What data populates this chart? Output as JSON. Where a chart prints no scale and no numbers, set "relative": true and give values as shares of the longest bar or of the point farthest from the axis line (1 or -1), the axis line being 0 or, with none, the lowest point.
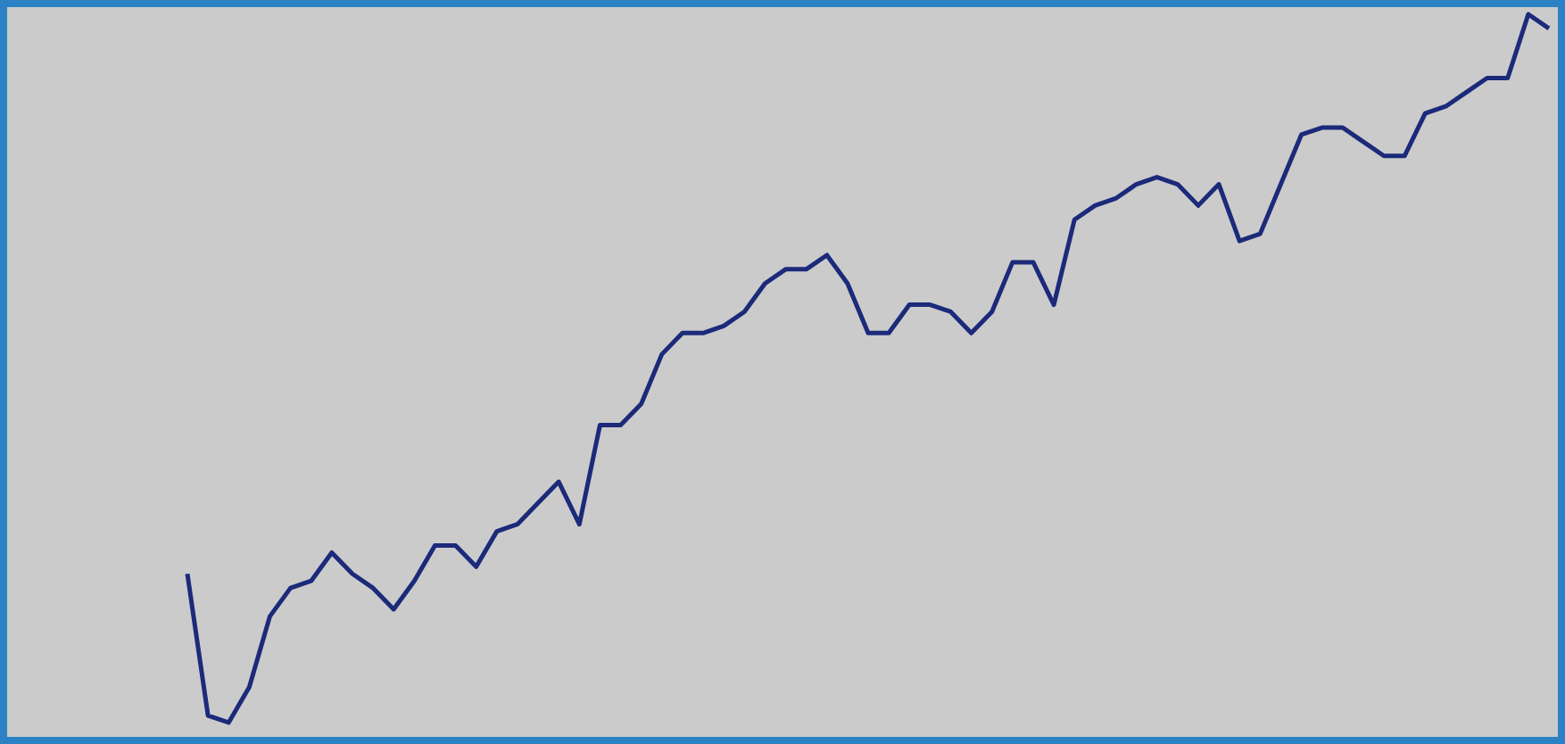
{
  "chart_data": {
    "type": "line",
    "relative": true,
    "categories": [
      null,
      null,
      null,
      null,
      null,
      null,
      null,
      null,
      null,
      null,
      null,
      null,
      null,
      null,
      null,
      null,
      null,
      null,
      null,
      null,
      null,
      null,
      null,
      null,
      null,
      null,
      null,
      null,
      null,
      null,
      null,
      null,
      null,
      null,
      null,
      null,
      null,
      null,
      null,
      null,
      null,
      null,
      null,
      null,
      null,
      null,
      null,
      null,
      null,
      null,
      null,
      null,
      null,
      null,
      null,
      null,
      null,
      null,
      null,
      null,
      null,
      null,
      null,
      null,
      null,
      null,
      null
    ],
    "series": [
      {
        "color": "#1c2a7a",
        "values": [
          0.21,
          0.01,
          0,
          0.05,
          0.15,
          0.19,
          0.2,
          0.24,
          0.21,
          0.19,
          0.16,
          0.2,
          0.25,
          0.25,
          0.22,
          0.27,
          0.28,
          0.31,
          0.34,
          0.28,
          0.42,
          0.42,
          0.45,
          0.52,
          0.55,
          0.55,
          0.56,
          0.58,
          0.62,
          0.64,
          0.64,
          0.66,
          0.62,
          0.55,
          0.55,
          0.59,
          0.59,
          0.58,
          0.55,
          0.58,
          0.65,
          0.65,
          0.59,
          0.71,
          0.73,
          0.74,
          0.76,
          0.77,
          0.76,
          0.73,
          0.76,
          0.68,
          0.69,
          0.76,
          0.83,
          0.84,
          0.84,
          0.82,
          0.8,
          0.8,
          0.86,
          0.87,
          0.89,
          0.91,
          0.91,
          1,
          0.98
        ]
      }
    ],
    "marker": "none",
    "line_style": "solid"
  }
}
